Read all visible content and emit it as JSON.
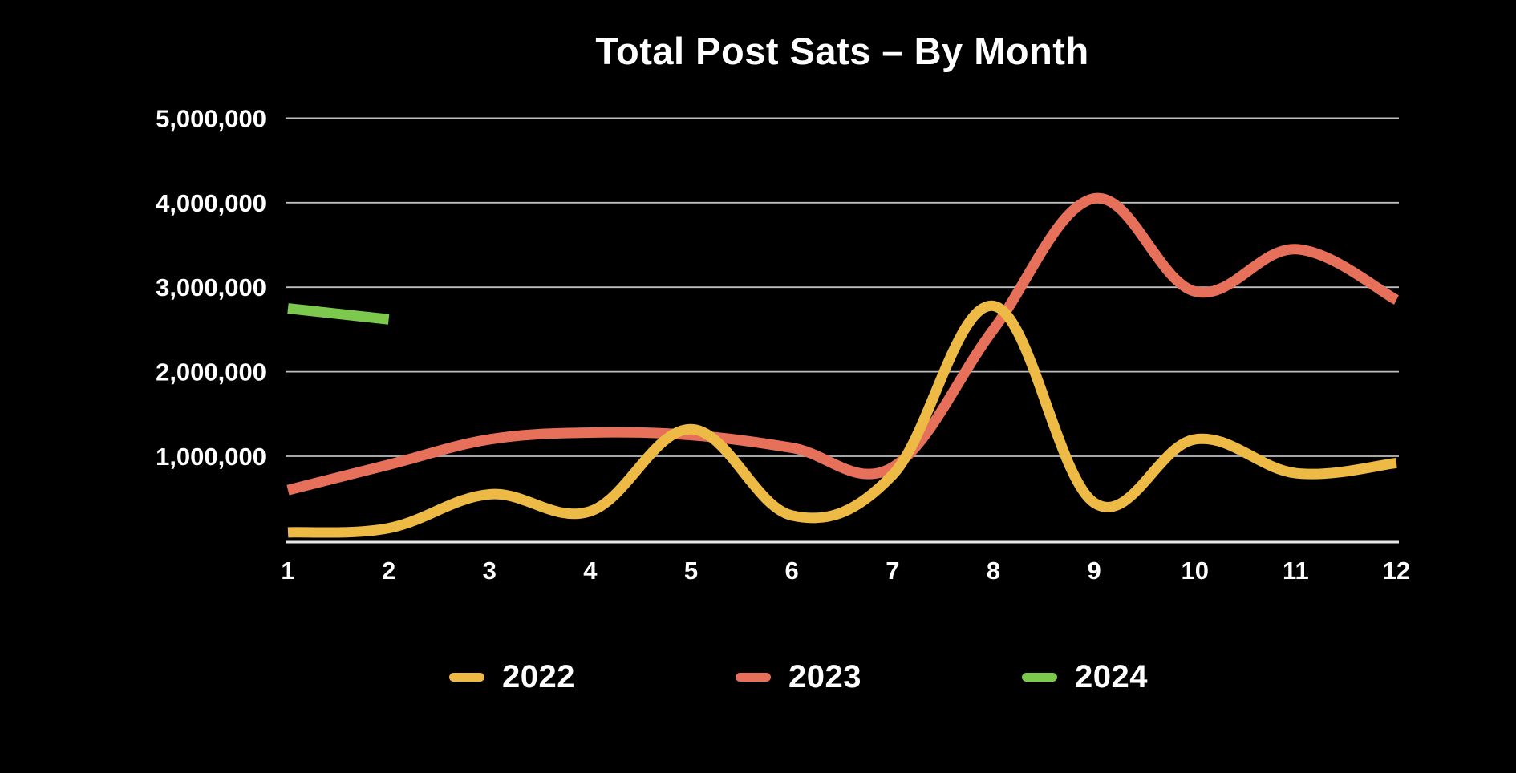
{
  "title": "Total Post Sats – By Month",
  "colors": {
    "background": "#000000",
    "text": "#FFFFFF",
    "grid": "#BFBFBF",
    "baseline": "#E8E8E8",
    "series_2022": "#ECBA45",
    "series_2023": "#E7705A",
    "series_2024": "#7DC94E"
  },
  "legend": {
    "items": [
      {
        "label": "2022",
        "color": "#ECBA45"
      },
      {
        "label": "2023",
        "color": "#E7705A"
      },
      {
        "label": "2024",
        "color": "#7DC94E"
      }
    ]
  },
  "chart_data": {
    "type": "line",
    "title": "Total Post Sats – By Month",
    "xlabel": "",
    "ylabel": "",
    "x_tick_labels": [
      "1",
      "2",
      "3",
      "4",
      "5",
      "6",
      "7",
      "8",
      "9",
      "10",
      "11",
      "12"
    ],
    "y_ticks": [
      {
        "value": 1000000,
        "label": "1,000,000"
      },
      {
        "value": 2000000,
        "label": "2,000,000"
      },
      {
        "value": 3000000,
        "label": "3,000,000"
      },
      {
        "value": 4000000,
        "label": "4,000,000"
      },
      {
        "value": 5000000,
        "label": "5,000,000"
      }
    ],
    "ylim": [
      0,
      5200000
    ],
    "grid": "horizontal",
    "legend_position": "bottom",
    "line_width": 13,
    "series": [
      {
        "name": "2022",
        "color": "#ECBA45",
        "values": [
          100000,
          150000,
          550000,
          350000,
          1320000,
          300000,
          780000,
          2780000,
          450000,
          1200000,
          800000,
          920000
        ]
      },
      {
        "name": "2023",
        "color": "#E7705A",
        "values": [
          600000,
          900000,
          1200000,
          1280000,
          1250000,
          1100000,
          870000,
          2500000,
          4050000,
          2950000,
          3450000,
          2850000
        ]
      },
      {
        "name": "2024",
        "color": "#7DC94E",
        "values": [
          2750000,
          2620000
        ]
      }
    ]
  }
}
